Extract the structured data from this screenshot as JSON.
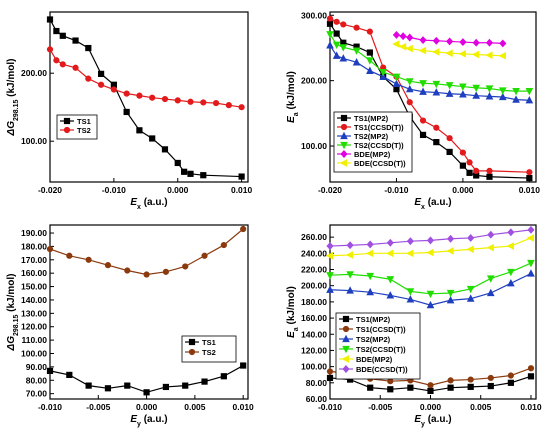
{
  "chart_data": [
    {
      "type": "line",
      "ylabel": "ΔG298.15 (kJ/mol)",
      "xlabel": "Ex (a.u.)",
      "xlim": [
        -0.02,
        0.011
      ],
      "ylim": [
        40,
        290
      ],
      "xticks": [
        -0.02,
        -0.01,
        0.0,
        0.01
      ],
      "xtick_labels": [
        "-0.020",
        "-0.010",
        "0.000",
        "0.010"
      ],
      "yticks": [
        100,
        200
      ],
      "ytick_labels": [
        "100.00",
        "200.00"
      ],
      "legend_position": "mid-left",
      "series": [
        {
          "name": "TS1",
          "color": "#000000",
          "marker": "square",
          "x": [
            -0.02,
            -0.019,
            -0.018,
            -0.016,
            -0.014,
            -0.012,
            -0.01,
            -0.008,
            -0.006,
            -0.004,
            -0.002,
            0.0,
            0.001,
            0.002,
            0.004,
            0.01
          ],
          "y": [
            279,
            262,
            255,
            248,
            237,
            199,
            183,
            143,
            116,
            104,
            88,
            68,
            55,
            52,
            50,
            48
          ]
        },
        {
          "name": "TS2",
          "color": "#e31a1c",
          "marker": "circle",
          "x": [
            -0.02,
            -0.019,
            -0.018,
            -0.016,
            -0.014,
            -0.012,
            -0.01,
            -0.008,
            -0.006,
            -0.004,
            -0.002,
            0.0,
            0.002,
            0.004,
            0.006,
            0.008,
            0.01
          ],
          "y": [
            235,
            219,
            213,
            208,
            192,
            183,
            176,
            170,
            167,
            164,
            162,
            160,
            158,
            157,
            156,
            153,
            150
          ]
        }
      ]
    },
    {
      "type": "line",
      "ylabel": "Ea (kJ/mol)",
      "xlabel": "Ex (a.u.)",
      "xlim": [
        -0.02,
        0.011
      ],
      "ylim": [
        45,
        305
      ],
      "xticks": [
        -0.02,
        -0.01,
        0.0,
        0.01
      ],
      "xtick_labels": [
        "-0.020",
        "-0.010",
        "0.000",
        "0.010"
      ],
      "yticks": [
        100,
        200,
        300
      ],
      "ytick_labels": [
        "100.00",
        "200.00",
        "300.00"
      ],
      "legend_position": "bottom-left",
      "series": [
        {
          "name": "TS1(MP2)",
          "color": "#000000",
          "marker": "square",
          "x": [
            -0.02,
            -0.019,
            -0.018,
            -0.016,
            -0.014,
            -0.012,
            -0.01,
            -0.008,
            -0.006,
            -0.004,
            -0.002,
            0.0,
            0.001,
            0.002,
            0.004,
            0.01
          ],
          "y": [
            287,
            272,
            258,
            252,
            243,
            206,
            187,
            145,
            117,
            106,
            91,
            70,
            59,
            55,
            53,
            51
          ]
        },
        {
          "name": "TS1(CCSD(T))",
          "color": "#e31a1c",
          "marker": "circle",
          "x": [
            -0.02,
            -0.019,
            -0.018,
            -0.016,
            -0.014,
            -0.012,
            -0.01,
            -0.008,
            -0.006,
            -0.004,
            -0.002,
            0.0,
            0.001,
            0.002,
            0.004,
            0.01
          ],
          "y": [
            295,
            290,
            286,
            281,
            275,
            220,
            206,
            167,
            139,
            128,
            112,
            90,
            75,
            62,
            62,
            60
          ]
        },
        {
          "name": "TS2(MP2)",
          "color": "#1f3fbf",
          "marker": "triangle",
          "x": [
            -0.02,
            -0.019,
            -0.018,
            -0.016,
            -0.014,
            -0.012,
            -0.01,
            -0.008,
            -0.006,
            -0.004,
            -0.002,
            0.0,
            0.002,
            0.004,
            0.006,
            0.008,
            0.01
          ],
          "y": [
            254,
            238,
            234,
            228,
            215,
            206,
            195,
            187,
            183,
            182,
            180,
            179,
            177,
            176,
            175,
            171,
            170
          ]
        },
        {
          "name": "TS2(CCSD(T))",
          "color": "#22dd00",
          "marker": "triangle-down",
          "x": [
            -0.02,
            -0.019,
            -0.018,
            -0.016,
            -0.014,
            -0.012,
            -0.01,
            -0.008,
            -0.006,
            -0.004,
            -0.002,
            0.0,
            0.002,
            0.004,
            0.006,
            0.008,
            0.01
          ],
          "y": [
            271,
            255,
            251,
            246,
            231,
            213,
            206,
            199,
            196,
            195,
            193,
            191,
            189,
            188,
            185,
            184,
            184
          ]
        },
        {
          "name": "BDE(MP2)",
          "color": "#e000e0",
          "marker": "diamond",
          "x": [
            -0.01,
            -0.009,
            -0.008,
            -0.006,
            -0.004,
            -0.002,
            0.0,
            0.002,
            0.004,
            0.006
          ],
          "y": [
            270,
            268,
            266,
            262,
            261,
            260,
            259,
            258,
            258,
            257
          ]
        },
        {
          "name": "BDE(CCSD(T))",
          "color": "#f0f000",
          "marker": "triangle-left",
          "x": [
            -0.01,
            -0.009,
            -0.008,
            -0.006,
            -0.004,
            -0.002,
            0.0,
            0.002,
            0.004,
            0.006
          ],
          "y": [
            256,
            252,
            249,
            246,
            244,
            242,
            241,
            240,
            239,
            238
          ]
        }
      ]
    },
    {
      "type": "line",
      "ylabel": "ΔG298.15 (kJ/mol)",
      "xlabel": "Ey (a.u.)",
      "xlim": [
        -0.01,
        0.0105
      ],
      "ylim": [
        66,
        196
      ],
      "xticks": [
        -0.01,
        -0.005,
        0.0,
        0.005,
        0.01
      ],
      "xtick_labels": [
        "-0.010",
        "-0.005",
        "0.000",
        "0.005",
        "0.010"
      ],
      "yticks": [
        70,
        80,
        90,
        100,
        110,
        120,
        130,
        140,
        150,
        160,
        170,
        180,
        190
      ],
      "ytick_labels": [
        "70.00",
        "80.00",
        "90.00",
        "100.00",
        "110.00",
        "120.00",
        "130.00",
        "140.00",
        "150.00",
        "160.00",
        "170.00",
        "180.00",
        "190.00"
      ],
      "legend_position": "mid-right",
      "series": [
        {
          "name": "TS1",
          "color": "#000000",
          "marker": "square",
          "x": [
            -0.01,
            -0.008,
            -0.006,
            -0.004,
            -0.002,
            0.0,
            0.002,
            0.004,
            0.006,
            0.008,
            0.01
          ],
          "y": [
            87,
            84,
            76,
            74,
            76,
            71,
            75,
            76,
            79,
            83,
            91
          ]
        },
        {
          "name": "TS2",
          "color": "#8b3a0e",
          "marker": "circle",
          "x": [
            -0.01,
            -0.008,
            -0.006,
            -0.004,
            -0.002,
            0.0,
            0.002,
            0.004,
            0.006,
            0.008,
            0.01
          ],
          "y": [
            178,
            173,
            170,
            166,
            162,
            159,
            161,
            165,
            173,
            181,
            193
          ]
        }
      ]
    },
    {
      "type": "line",
      "ylabel": "Ea (kJ/mol)",
      "xlabel": "Ey (a.u.)",
      "xlim": [
        -0.01,
        0.0105
      ],
      "ylim": [
        60,
        275
      ],
      "xticks": [
        -0.01,
        -0.005,
        0.0,
        0.005,
        0.01
      ],
      "xtick_labels": [
        "-0.010",
        "-0.005",
        "0.000",
        "0.005",
        "0.010"
      ],
      "yticks": [
        60,
        80,
        100,
        120,
        140,
        160,
        180,
        200,
        220,
        240,
        260
      ],
      "ytick_labels": [
        "60.00",
        "80.00",
        "100.00",
        "120.00",
        "140.00",
        "160.00",
        "180.00",
        "200.00",
        "220.00",
        "240.00",
        "260.00"
      ],
      "legend_position": "center-left",
      "series": [
        {
          "name": "TS1(MP2)",
          "color": "#000000",
          "marker": "square",
          "x": [
            -0.01,
            -0.008,
            -0.006,
            -0.004,
            -0.002,
            0.0,
            0.002,
            0.004,
            0.006,
            0.008,
            0.01
          ],
          "y": [
            86,
            84,
            74,
            72,
            74,
            70,
            74,
            75,
            76,
            80,
            88
          ]
        },
        {
          "name": "TS1(CCSD(T))",
          "color": "#8b3a0e",
          "marker": "circle",
          "x": [
            -0.01,
            -0.008,
            -0.006,
            -0.004,
            -0.002,
            0.0,
            0.002,
            0.004,
            0.006,
            0.008,
            0.01
          ],
          "y": [
            94,
            92,
            85,
            82,
            83,
            77,
            83,
            84,
            86,
            89,
            98
          ]
        },
        {
          "name": "TS2(MP2)",
          "color": "#1f3fbf",
          "marker": "triangle",
          "x": [
            -0.01,
            -0.008,
            -0.006,
            -0.004,
            -0.002,
            0.0,
            0.002,
            0.004,
            0.006,
            0.008,
            0.01
          ],
          "y": [
            195,
            194,
            192,
            188,
            183,
            176,
            182,
            184,
            191,
            203,
            215
          ]
        },
        {
          "name": "TS2(CCSD(T))",
          "color": "#22dd00",
          "marker": "triangle-down",
          "x": [
            -0.01,
            -0.008,
            -0.006,
            -0.004,
            -0.002,
            0.0,
            0.002,
            0.004,
            0.006,
            0.008,
            0.01
          ],
          "y": [
            213,
            214,
            212,
            208,
            193,
            190,
            191,
            196,
            209,
            217,
            228
          ]
        },
        {
          "name": "BDE(MP2)",
          "color": "#f0f000",
          "marker": "triangle-left",
          "x": [
            -0.01,
            -0.008,
            -0.006,
            -0.004,
            -0.002,
            0.0,
            0.002,
            0.004,
            0.006,
            0.008,
            0.01
          ],
          "y": [
            237,
            238,
            240,
            240,
            240,
            241,
            243,
            245,
            247,
            249,
            259
          ]
        },
        {
          "name": "BDE(CCSD(T))",
          "color": "#a050e0",
          "marker": "diamond",
          "x": [
            -0.01,
            -0.008,
            -0.006,
            -0.004,
            -0.002,
            0.0,
            0.002,
            0.004,
            0.006,
            0.008,
            0.01
          ],
          "y": [
            249,
            250,
            251,
            253,
            255,
            256,
            258,
            259,
            263,
            266,
            269
          ]
        }
      ]
    }
  ]
}
